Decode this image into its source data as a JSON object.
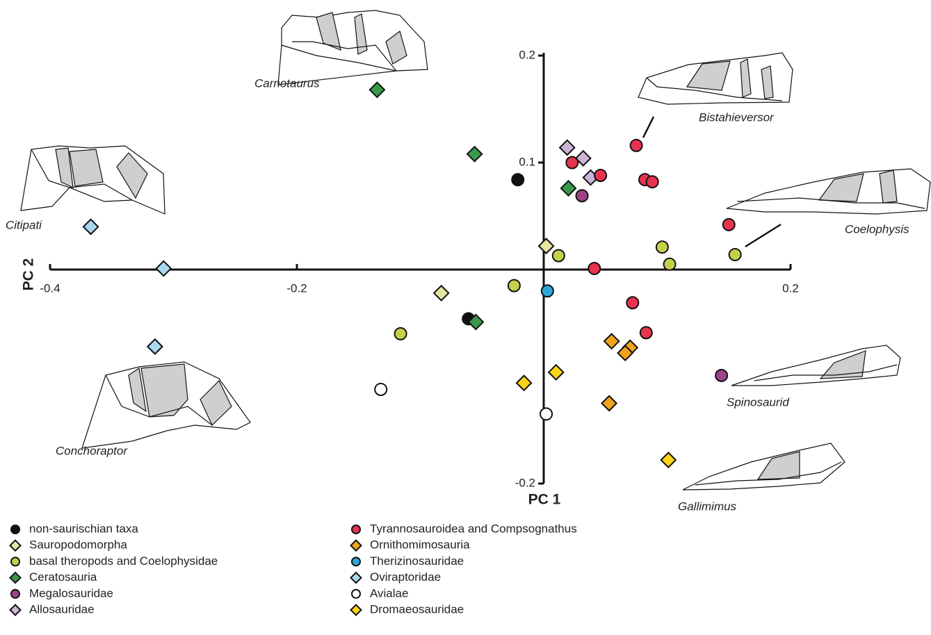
{
  "chart_data": {
    "type": "scatter",
    "x_label": "PC 1",
    "y_label": "PC 2",
    "xlim": [
      -0.4,
      0.2
    ],
    "ylim": [
      -0.2,
      0.2
    ],
    "xticks": [
      -0.4,
      -0.2,
      0.2
    ],
    "yticks": [
      -0.2,
      0.1,
      0.2
    ],
    "series": [
      {
        "name": "non-saurischian taxa",
        "color": "#111111",
        "marker": "circle",
        "x": [
          -0.021,
          -0.061
        ],
        "values": [
          0.084,
          -0.046
        ]
      },
      {
        "name": "Sauropodomorpha",
        "color": "#e3e6a0",
        "marker": "diamond",
        "x": [
          0.002,
          -0.083
        ],
        "values": [
          0.022,
          -0.022
        ]
      },
      {
        "name": "basal theropods and Coelophysidae",
        "color": "#c5d04a",
        "marker": "circle",
        "x": [
          0.012,
          -0.024,
          -0.116,
          0.096,
          0.102,
          0.155
        ],
        "values": [
          0.013,
          -0.015,
          -0.06,
          0.021,
          0.005,
          0.014
        ]
      },
      {
        "name": "Ceratosauria",
        "color": "#3a9a4a",
        "marker": "diamond",
        "x": [
          -0.135,
          -0.056,
          0.02,
          -0.055
        ],
        "values": [
          0.168,
          0.108,
          0.076,
          -0.049
        ]
      },
      {
        "name": "Megalosauridae",
        "color": "#a0428a",
        "marker": "circle",
        "x": [
          0.031,
          0.144
        ],
        "values": [
          0.069,
          -0.099
        ]
      },
      {
        "name": "Allosauridae",
        "color": "#cdb3d6",
        "marker": "diamond",
        "x": [
          0.019,
          0.032,
          0.038
        ],
        "values": [
          0.114,
          0.104,
          0.086
        ]
      },
      {
        "name": "Tyrannosauroidea and Compsognathus",
        "color": "#e8334f",
        "marker": "circle",
        "x": [
          0.023,
          0.046,
          0.075,
          0.082,
          0.088,
          0.15,
          0.041,
          0.072,
          0.083
        ],
        "values": [
          0.1,
          0.088,
          0.116,
          0.084,
          0.082,
          0.042,
          0.001,
          -0.031,
          -0.059
        ]
      },
      {
        "name": "Ornithomimosauria",
        "color": "#f2a31c",
        "marker": "diamond",
        "x": [
          0.055,
          0.07,
          0.066,
          0.053
        ],
        "values": [
          -0.067,
          -0.073,
          -0.078,
          -0.125
        ]
      },
      {
        "name": "Therizinosauridae",
        "color": "#2aa6dc",
        "marker": "circle",
        "x": [
          0.003
        ],
        "values": [
          -0.02
        ]
      },
      {
        "name": "Oviraptoridae",
        "color": "#a9d8ee",
        "marker": "diamond",
        "x": [
          -0.367,
          -0.308,
          -0.315
        ],
        "values": [
          0.04,
          0.001,
          -0.072
        ]
      },
      {
        "name": "Avialae",
        "color": "#ffffff",
        "marker": "circle",
        "x": [
          -0.132,
          0.002
        ],
        "values": [
          -0.112,
          -0.135
        ]
      },
      {
        "name": "Dromaeosauridae",
        "color": "#fbd417",
        "marker": "diamond",
        "x": [
          0.01,
          -0.016,
          0.101
        ],
        "values": [
          -0.096,
          -0.106,
          -0.178
        ]
      }
    ],
    "annotations": [
      "Carnotaurus",
      "Bistahieversor",
      "Citipati",
      "Coelophysis",
      "Spinosaurid",
      "Conchoraptor",
      "Gallimimus"
    ]
  }
}
